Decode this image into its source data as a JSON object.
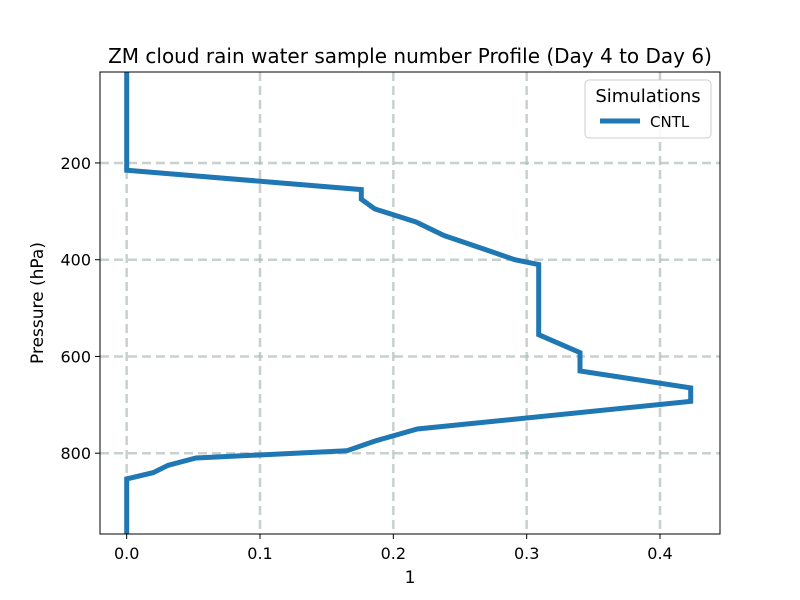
{
  "chart_data": {
    "type": "line",
    "title": "ZM cloud rain water sample number Profile (Day 4 to Day 6)",
    "xlabel": "1",
    "ylabel": "Pressure (hPa)",
    "xlim": [
      -0.02,
      0.445
    ],
    "ylim": [
      967,
      12
    ],
    "y_inverted": true,
    "grid": true,
    "x_ticks": [
      {
        "value": 0.0,
        "label": "0.0"
      },
      {
        "value": 0.1,
        "label": "0.1"
      },
      {
        "value": 0.2,
        "label": "0.2"
      },
      {
        "value": 0.3,
        "label": "0.3"
      },
      {
        "value": 0.4,
        "label": "0.4"
      }
    ],
    "y_ticks": [
      {
        "value": 200,
        "label": "200"
      },
      {
        "value": 400,
        "label": "400"
      },
      {
        "value": 600,
        "label": "600"
      },
      {
        "value": 800,
        "label": "800"
      }
    ],
    "legend": {
      "title": "Simulations",
      "placement": "top-right"
    },
    "series": [
      {
        "name": "CNTL",
        "color": "#1f77b4",
        "points": [
          {
            "x": 0.0,
            "y": 12
          },
          {
            "x": 0.0,
            "y": 215
          },
          {
            "x": 0.176,
            "y": 255
          },
          {
            "x": 0.176,
            "y": 275
          },
          {
            "x": 0.186,
            "y": 295
          },
          {
            "x": 0.217,
            "y": 322
          },
          {
            "x": 0.238,
            "y": 350
          },
          {
            "x": 0.27,
            "y": 380
          },
          {
            "x": 0.291,
            "y": 400
          },
          {
            "x": 0.309,
            "y": 410
          },
          {
            "x": 0.309,
            "y": 555
          },
          {
            "x": 0.34,
            "y": 592
          },
          {
            "x": 0.34,
            "y": 630
          },
          {
            "x": 0.423,
            "y": 665
          },
          {
            "x": 0.423,
            "y": 693
          },
          {
            "x": 0.218,
            "y": 750
          },
          {
            "x": 0.186,
            "y": 775
          },
          {
            "x": 0.165,
            "y": 795
          },
          {
            "x": 0.052,
            "y": 810
          },
          {
            "x": 0.031,
            "y": 825
          },
          {
            "x": 0.02,
            "y": 840
          },
          {
            "x": 0.0,
            "y": 853
          },
          {
            "x": 0.0,
            "y": 967
          }
        ]
      }
    ]
  }
}
